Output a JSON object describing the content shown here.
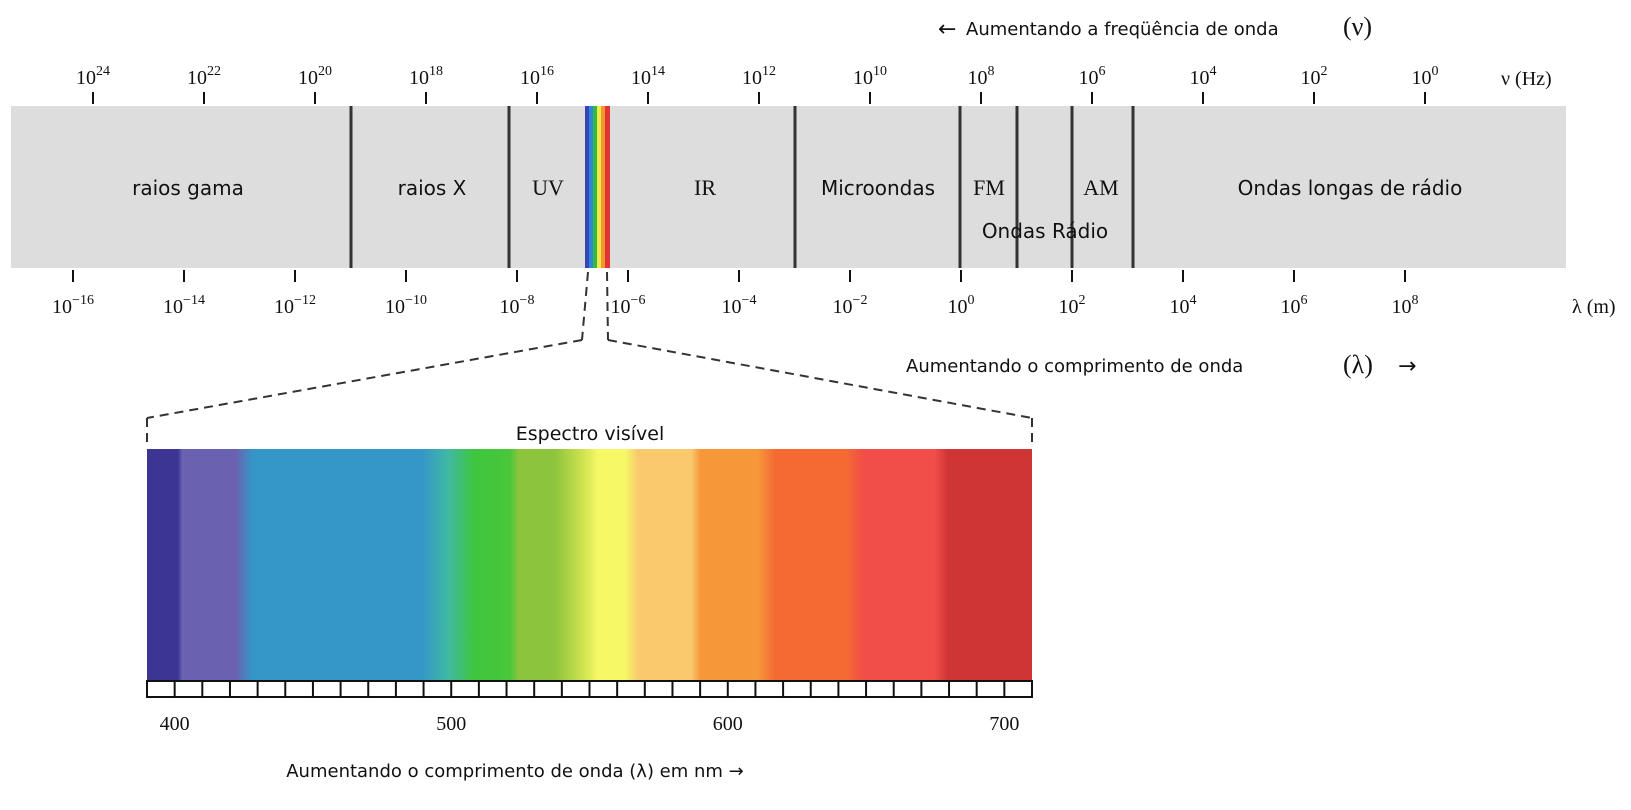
{
  "frequency_direction": {
    "text": "Aumentando a freqüência de onda",
    "symbol": "(ν)",
    "arrow": "←"
  },
  "frequency_axis": {
    "unit": "ν (Hz)",
    "ticks": [
      {
        "base": "10",
        "exp": "24"
      },
      {
        "base": "10",
        "exp": "22"
      },
      {
        "base": "10",
        "exp": "20"
      },
      {
        "base": "10",
        "exp": "18"
      },
      {
        "base": "10",
        "exp": "16"
      },
      {
        "base": "10",
        "exp": "14"
      },
      {
        "base": "10",
        "exp": "12"
      },
      {
        "base": "10",
        "exp": "10"
      },
      {
        "base": "10",
        "exp": "8"
      },
      {
        "base": "10",
        "exp": "6"
      },
      {
        "base": "10",
        "exp": "4"
      },
      {
        "base": "10",
        "exp": "2"
      },
      {
        "base": "10",
        "exp": "0"
      }
    ]
  },
  "wavelength_axis": {
    "unit": "λ (m)",
    "ticks": [
      {
        "base": "10",
        "exp": "−16"
      },
      {
        "base": "10",
        "exp": "−14"
      },
      {
        "base": "10",
        "exp": "−12"
      },
      {
        "base": "10",
        "exp": "−10"
      },
      {
        "base": "10",
        "exp": "−8"
      },
      {
        "base": "10",
        "exp": "−6"
      },
      {
        "base": "10",
        "exp": "−4"
      },
      {
        "base": "10",
        "exp": "−2"
      },
      {
        "base": "10",
        "exp": "0"
      },
      {
        "base": "10",
        "exp": "2"
      },
      {
        "base": "10",
        "exp": "4"
      },
      {
        "base": "10",
        "exp": "6"
      },
      {
        "base": "10",
        "exp": "8"
      }
    ]
  },
  "bands": {
    "gamma": "raios gama",
    "xray": "raios X",
    "uv": "UV",
    "ir": "IR",
    "microwave": "Microondas",
    "fm": "FM",
    "am": "AM",
    "radio": "Ondas Rádio",
    "longwave": "Ondas longas de rádio"
  },
  "wavelength_direction": {
    "text": "Aumentando o comprimento de onda",
    "symbol": "(λ)",
    "arrow": "→"
  },
  "visible": {
    "title": "Espectro visível",
    "ticks": [
      "400",
      "500",
      "600",
      "700"
    ],
    "caption": "Aumentando o comprimento de onda (λ) em nm →"
  },
  "colors": {
    "band_background": "#dddddd",
    "divider": "#333333",
    "spectrum": [
      "#3c3593",
      "#6a62b0",
      "#3596c8",
      "#3fb9a4",
      "#3ec63e",
      "#8cc43c",
      "#c9e04e",
      "#f7f866",
      "#f9c96e",
      "#f6983a",
      "#f46a32",
      "#f14d49",
      "#d03535"
    ]
  }
}
